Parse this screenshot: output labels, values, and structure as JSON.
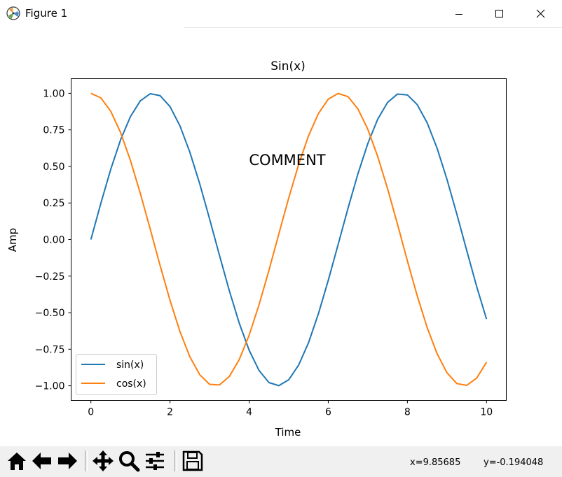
{
  "window": {
    "title": "Figure 1"
  },
  "toolbar": {
    "buttons": [
      "home-icon",
      "back-arrow-icon",
      "forward-arrow-icon",
      "pan-icon",
      "zoom-icon",
      "subplots-icon",
      "save-icon"
    ],
    "coord_x": "x=9.85685",
    "coord_y": "y=-0.194048"
  },
  "chart_data": {
    "type": "line",
    "title": "Sin(x)",
    "xlabel": "Time",
    "ylabel": "Amp",
    "xlim": [
      -0.5,
      10.5
    ],
    "ylim": [
      -1.1,
      1.1
    ],
    "xticks": [
      0,
      2,
      4,
      6,
      8,
      10
    ],
    "xtick_labels": [
      "0",
      "2",
      "4",
      "6",
      "8",
      "10"
    ],
    "yticks": [
      1.0,
      0.75,
      0.5,
      0.25,
      0.0,
      -0.25,
      -0.5,
      -0.75,
      -1.0
    ],
    "ytick_labels": [
      "1.00",
      "0.75",
      "0.50",
      "0.25",
      "0.00",
      "−0.25",
      "−0.50",
      "−0.75",
      "−1.00"
    ],
    "grid": false,
    "legend_position": "lower-left",
    "x": [
      0,
      0.25,
      0.5,
      0.75,
      1,
      1.25,
      1.5,
      1.75,
      2,
      2.25,
      2.5,
      2.75,
      3,
      3.25,
      3.5,
      3.75,
      4,
      4.25,
      4.5,
      4.75,
      5,
      5.25,
      5.5,
      5.75,
      6,
      6.25,
      6.5,
      6.75,
      7,
      7.25,
      7.5,
      7.75,
      8,
      8.25,
      8.5,
      8.75,
      9,
      9.25,
      9.5,
      9.75,
      10
    ],
    "series": [
      {
        "name": "sin(x)",
        "color": "#1f77b4",
        "values": [
          0,
          0.247,
          0.479,
          0.682,
          0.841,
          0.949,
          0.997,
          0.984,
          0.909,
          0.778,
          0.598,
          0.382,
          0.141,
          -0.108,
          -0.351,
          -0.572,
          -0.757,
          -0.895,
          -0.978,
          -0.999,
          -0.959,
          -0.859,
          -0.706,
          -0.508,
          -0.279,
          -0.033,
          0.215,
          0.45,
          0.657,
          0.823,
          0.938,
          0.995,
          0.989,
          0.922,
          0.798,
          0.625,
          0.412,
          0.174,
          -0.075,
          -0.32,
          -0.544
        ]
      },
      {
        "name": "cos(x)",
        "color": "#ff7f0e",
        "values": [
          1,
          0.969,
          0.878,
          0.732,
          0.54,
          0.315,
          0.071,
          -0.178,
          -0.416,
          -0.628,
          -0.801,
          -0.924,
          -0.99,
          -0.994,
          -0.936,
          -0.82,
          -0.654,
          -0.446,
          -0.211,
          0.038,
          0.284,
          0.512,
          0.709,
          0.861,
          0.96,
          0.999,
          0.977,
          0.893,
          0.754,
          0.568,
          0.347,
          0.105,
          -0.146,
          -0.386,
          -0.602,
          -0.78,
          -0.911,
          -0.985,
          -0.997,
          -0.948,
          -0.839
        ]
      }
    ],
    "annotations": [
      {
        "text": "COMMENT",
        "x": 5,
        "y": 0.5
      }
    ]
  }
}
